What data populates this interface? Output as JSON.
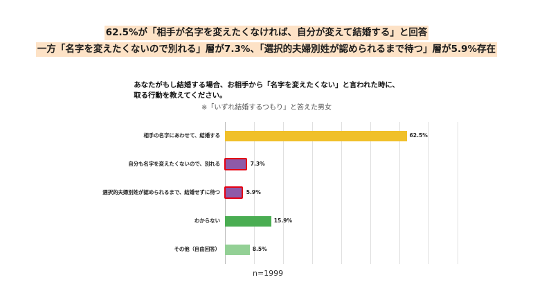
{
  "headline": {
    "line1": "62.5%が「相手が名字を変えたくなければ、自分が変えて結婚する」と回答",
    "line2": "一方「名字を変えたくないので別れる」層が7.3%、「選択的夫婦別姓が認められるまで待つ」層が5.9%存在",
    "highlight_color": "#fde2c6"
  },
  "chart_data": {
    "type": "bar",
    "orientation": "horizontal",
    "title": [
      "あなたがもし結婚する場合、お相手から「名字を変えたくない」と言われた時に、",
      "取る行動を教えてください。"
    ],
    "subtitle": "※「いずれ結婚するつもり」と答えた男女",
    "categories": [
      "相手の名字にあわせて、結婚する",
      "自分も名字を変えたくないので、別れる",
      "選択的夫婦別姓が認められるまで、結婚せずに待つ",
      "わからない",
      "その他（自由回答）"
    ],
    "values": [
      62.5,
      7.3,
      5.9,
      15.9,
      8.5
    ],
    "value_labels": [
      "62.5%",
      "7.3%",
      "5.9%",
      "15.9%",
      "8.5%"
    ],
    "colors": [
      "#f0c02a",
      "#8e5aa8",
      "#8e5aa8",
      "#4aad52",
      "#93d095"
    ],
    "highlighted": [
      false,
      true,
      true,
      false,
      false
    ],
    "highlight_border_color": "#e50012",
    "xlim": [
      0,
      80
    ],
    "grid": true,
    "note": "n=1999"
  }
}
